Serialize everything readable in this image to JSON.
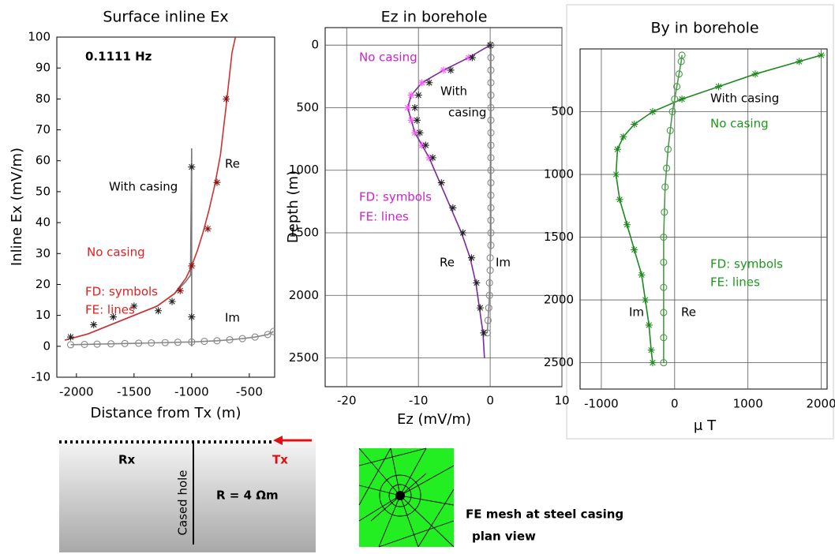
{
  "chart_data": [
    {
      "type": "line",
      "title": "Surface inline Ex",
      "x_label": "Distance from Tx (m)",
      "y_label": "Inline Ex  (mV/m)",
      "xlim": [
        -2170,
        -280
      ],
      "ylim": [
        -10,
        100
      ],
      "xticks": [
        -2000,
        -1500,
        -1000,
        -500
      ],
      "yticks": [
        -10,
        0,
        10,
        20,
        30,
        40,
        50,
        60,
        70,
        80,
        90,
        100
      ],
      "grid": false,
      "annotations": [
        {
          "text": "0.1111 Hz",
          "color": "#000000"
        },
        {
          "text": "Re",
          "color": "#000000"
        },
        {
          "text": "Im",
          "color": "#000000"
        },
        {
          "text": "With casing",
          "color": "#000000"
        },
        {
          "text": "No casing",
          "color": "#e02020"
        },
        {
          "text": "FD: symbols",
          "color": "#e02020"
        },
        {
          "text": "FE: lines",
          "color": "#e02020"
        }
      ],
      "series": [
        {
          "color": "#777777",
          "marker": "none",
          "line": true,
          "x": [
            -2100,
            -1900,
            -1700,
            -1500,
            -1300,
            -1150,
            -1050,
            -1010,
            -1000,
            -1000,
            -1000
          ],
          "values": [
            2,
            4,
            7,
            10,
            13,
            17,
            21,
            23,
            64,
            0,
            26
          ]
        },
        {
          "color": "#d03030",
          "marker": "none",
          "line": true,
          "x": [
            -2100,
            -1900,
            -1700,
            -1500,
            -1300,
            -1150,
            -1050,
            -1000,
            -950,
            -900,
            -850,
            -800,
            -750,
            -700,
            -650,
            -620
          ],
          "values": [
            2,
            4,
            7,
            10,
            13,
            17,
            22,
            26,
            31,
            37,
            44,
            52,
            62,
            78,
            95,
            100
          ]
        },
        {
          "color": "#888888",
          "marker": "circle",
          "line": true,
          "x": [
            -2050,
            -1930,
            -1820,
            -1700,
            -1580,
            -1460,
            -1350,
            -1230,
            -1120,
            -1000,
            -890,
            -780,
            -670,
            -560,
            -450,
            -340,
            -290
          ],
          "values": [
            0.5,
            0.6,
            0.7,
            0.8,
            0.9,
            1,
            1.1,
            1.2,
            1.3,
            1.4,
            1.6,
            1.8,
            2.1,
            2.5,
            3,
            3.8,
            4.8
          ]
        },
        {
          "color": "#8a1010",
          "marker": "asterisk",
          "line": false,
          "x": [
            -1100,
            -1000,
            -860,
            -780,
            -700
          ],
          "values": [
            18,
            26,
            38,
            53,
            80
          ]
        },
        {
          "color": "#222222",
          "marker": "asterisk",
          "line": false,
          "x": [
            -2050,
            -1850,
            -1680,
            -1500,
            -1290,
            -1170,
            -1000,
            -1000
          ],
          "values": [
            3,
            7,
            9.5,
            13,
            11.5,
            14.5,
            9.5,
            58
          ]
        }
      ]
    },
    {
      "type": "line",
      "title": "Ez in borehole",
      "x_label": "Ez (mV/m)",
      "y_label": "Depth (m)",
      "xlim": [
        -23,
        10
      ],
      "ylim": [
        2730,
        -140
      ],
      "xticks": [
        -20,
        -10,
        0,
        10
      ],
      "yticks": [
        0,
        500,
        1000,
        1500,
        2000,
        2500
      ],
      "grid": true,
      "annotations": [
        {
          "text": "No casing",
          "color": "#cc22cc"
        },
        {
          "text": "With",
          "color": "#000000"
        },
        {
          "text": "casing",
          "color": "#000000"
        },
        {
          "text": "FD: symbols",
          "color": "#cc22cc"
        },
        {
          "text": "FE: lines",
          "color": "#cc22cc"
        },
        {
          "text": "Re",
          "color": "#000000"
        },
        {
          "text": "Im",
          "color": "#000000"
        }
      ],
      "series": [
        {
          "color": "#888888",
          "marker": "circle",
          "line": true,
          "x": [
            0.1,
            0.1,
            0.1,
            0.1,
            0.1,
            0.1,
            0.1,
            0.1,
            0.1,
            0.1,
            0.1,
            0.1,
            0.1,
            0.1,
            0.1,
            0.1,
            0.1,
            0,
            0,
            -0.1,
            -0.1,
            -0.2,
            -0.3,
            -0.4
          ],
          "values": [
            0,
            100,
            200,
            300,
            400,
            500,
            600,
            700,
            800,
            900,
            1000,
            1100,
            1200,
            1300,
            1400,
            1500,
            1600,
            1700,
            1800,
            1900,
            2000,
            2100,
            2200,
            2300
          ]
        },
        {
          "color": "#7a2aa0",
          "marker": "none",
          "line": true,
          "x": [
            0,
            -3,
            -6.5,
            -9.5,
            -11,
            -11.5,
            -11,
            -10.5,
            -9.5,
            -8.5,
            -7,
            -5.5,
            -4,
            -2.8,
            -2,
            -1.5,
            -1,
            -0.8
          ],
          "values": [
            0,
            100,
            200,
            300,
            400,
            500,
            600,
            700,
            800,
            900,
            1100,
            1300,
            1500,
            1700,
            1900,
            2100,
            2300,
            2500
          ]
        },
        {
          "color": "#ff55ff",
          "marker": "asterisk",
          "line": false,
          "x": [
            -3,
            -6.5,
            -9.5,
            -11,
            -11.5,
            -11,
            -10.5,
            -9.5,
            -8.5
          ],
          "values": [
            100,
            200,
            300,
            400,
            500,
            600,
            700,
            800,
            900
          ]
        },
        {
          "color": "#222222",
          "marker": "asterisk",
          "line": false,
          "x": [
            0,
            -2.5,
            -5.5,
            -8.5,
            -10,
            -10.5,
            -10.2,
            -9.8,
            -9,
            -8,
            -6.8,
            -5.2,
            -3.8,
            -2.6,
            -1.9,
            -1.4,
            -0.9
          ],
          "values": [
            0,
            100,
            200,
            300,
            400,
            500,
            600,
            700,
            800,
            900,
            1100,
            1300,
            1500,
            1700,
            1900,
            2100,
            2300
          ]
        }
      ]
    },
    {
      "type": "line",
      "title": "By in borehole",
      "x_label": "μ T",
      "xlim": [
        -1290,
        2080
      ],
      "ylim": [
        2710,
        0
      ],
      "xticks": [
        -1000,
        0,
        1000,
        2000
      ],
      "yticks": [
        500,
        1000,
        1500,
        2000,
        2500
      ],
      "grid": true,
      "annotations": [
        {
          "text": "With casing",
          "color": "#000000"
        },
        {
          "text": "No casing",
          "color": "#1a9a1a"
        },
        {
          "text": "FD: symbols",
          "color": "#1a9a1a"
        },
        {
          "text": "FE: lines",
          "color": "#1a9a1a"
        },
        {
          "text": "Im",
          "color": "#000000"
        },
        {
          "text": "Re",
          "color": "#000000"
        }
      ],
      "series": [
        {
          "color": "#1e8a1e",
          "marker": "asterisk",
          "line": true,
          "x": [
            2000,
            1700,
            1100,
            600,
            100,
            -300,
            -550,
            -700,
            -780,
            -800,
            -750,
            -650,
            -550,
            -450,
            -400,
            -350,
            -320,
            -300
          ],
          "values": [
            50,
            100,
            200,
            300,
            400,
            500,
            600,
            700,
            800,
            1000,
            1200,
            1400,
            1600,
            1800,
            2000,
            2200,
            2400,
            2500
          ]
        },
        {
          "color": "#4a9a4a",
          "marker": "circle",
          "line": true,
          "x": [
            100,
            90,
            60,
            30,
            0,
            -30,
            -60,
            -90,
            -110,
            -130,
            -140,
            -150,
            -150,
            -150,
            -150,
            -150,
            -150
          ],
          "values": [
            50,
            100,
            200,
            300,
            400,
            500,
            650,
            800,
            950,
            1100,
            1300,
            1500,
            1700,
            1900,
            2100,
            2300,
            2500
          ]
        }
      ]
    }
  ],
  "diagram": {
    "rx": "Rx",
    "tx": "Tx",
    "hole": "Cased hole",
    "resistivity": "R = 4 Ωm",
    "mesh_title": "FE mesh at steel casing",
    "mesh_sub": "plan view"
  }
}
